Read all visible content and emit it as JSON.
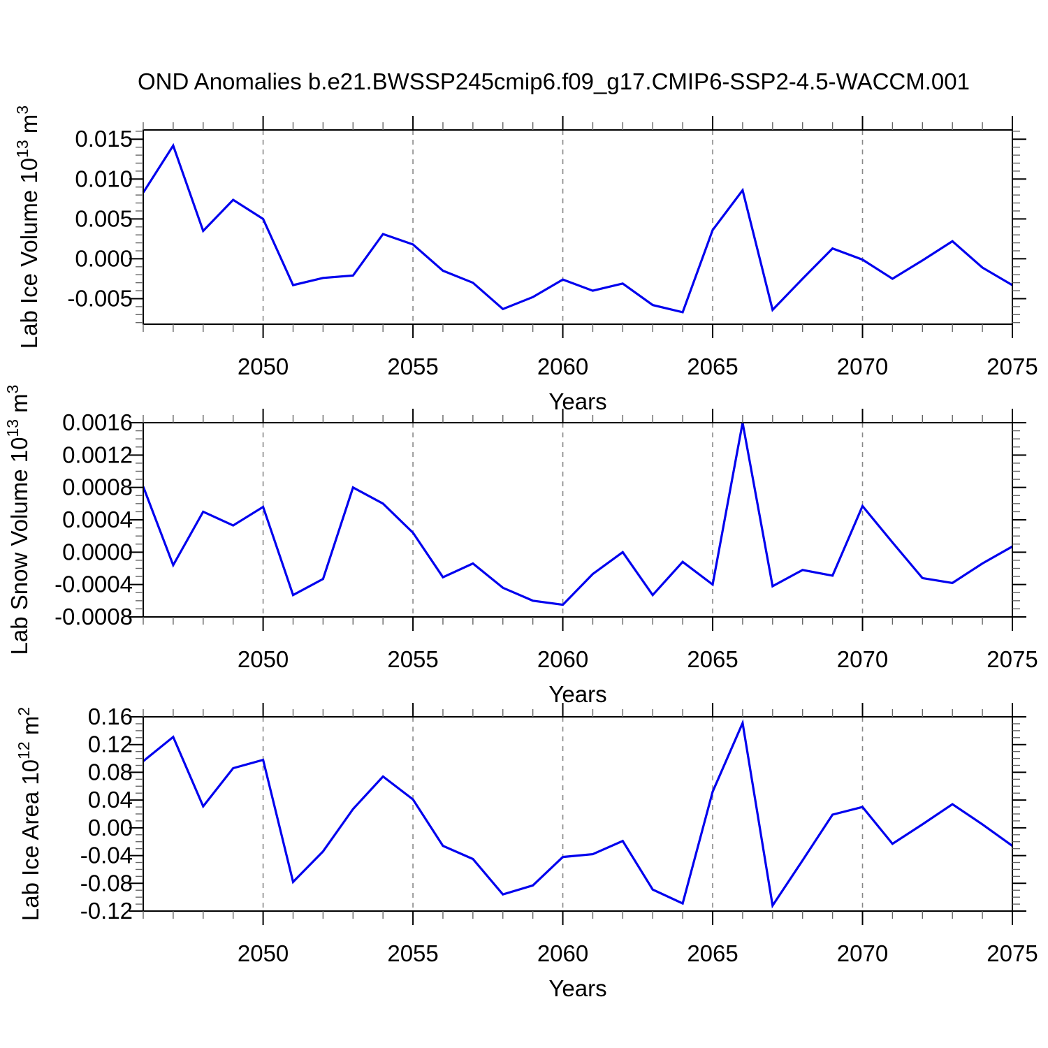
{
  "title": "OND Anomalies b.e21.BWSSP245cmip6.f09_g17.CMIP6-SSP2-4.5-WACCM.001",
  "colors": {
    "line": "#0000EE",
    "grid": "#888888",
    "axis": "#000000",
    "minor_tick": "#666666",
    "text": "#000000"
  },
  "chart_data": {
    "type": "line",
    "xlabel": "Years",
    "xlim": [
      2046,
      2075
    ],
    "x": [
      2046,
      2047,
      2048,
      2049,
      2050,
      2051,
      2052,
      2053,
      2054,
      2055,
      2056,
      2057,
      2058,
      2059,
      2060,
      2061,
      2062,
      2063,
      2064,
      2065,
      2066,
      2067,
      2068,
      2069,
      2070,
      2071,
      2072,
      2073,
      2074,
      2075
    ],
    "x_major_ticks": [
      2050,
      2055,
      2060,
      2065,
      2070,
      2075
    ],
    "x_major_labels": [
      "2050",
      "2055",
      "2060",
      "2065",
      "2070",
      "2075"
    ],
    "x_gridlines": [
      2050,
      2055,
      2060,
      2065,
      2070
    ],
    "panels": [
      {
        "name": "lab-ice-volume",
        "ylabel": "Lab Ice Volume 10^{13} m^{3}",
        "ylim": [
          -0.0082,
          0.01616
        ],
        "y_major_ticks": [
          0.015,
          0.01,
          0.005,
          0.0,
          -0.005
        ],
        "y_major_labels": [
          "0.015",
          "0.010",
          "0.005",
          "0.000",
          "-0.005"
        ],
        "y_minor_step": 0.001,
        "values": [
          0.0083,
          0.0142,
          0.0035,
          0.0074,
          0.005,
          -0.0033,
          -0.0024,
          -0.0021,
          0.0031,
          0.0018,
          -0.0015,
          -0.003,
          -0.0063,
          -0.0048,
          -0.0026,
          -0.004,
          -0.0031,
          -0.0058,
          -0.0067,
          0.0036,
          0.0086,
          -0.0064,
          -0.0025,
          0.0013,
          -0.0001,
          -0.0025,
          -0.0002,
          0.0022,
          -0.0011,
          -0.0033
        ]
      },
      {
        "name": "lab-snow-volume",
        "ylabel": "Lab Snow Volume 10^{13} m^{3}",
        "ylim": [
          -0.0008,
          0.0016
        ],
        "y_major_ticks": [
          0.0016,
          0.0012,
          0.0008,
          0.0004,
          0.0,
          -0.0004,
          -0.0008
        ],
        "y_major_labels": [
          "0.0016",
          "0.0012",
          "0.0008",
          "0.0004",
          "0.0000",
          "-0.0004",
          "-0.0008"
        ],
        "y_minor_step": 0.0001,
        "values": [
          0.00081,
          -0.00016,
          0.0005,
          0.00033,
          0.00056,
          -0.00053,
          -0.00033,
          0.0008,
          0.0006,
          0.00024,
          -0.00031,
          -0.00014,
          -0.00044,
          -0.0006,
          -0.00065,
          -0.00027,
          0.0,
          -0.00053,
          -0.00012,
          -0.0004,
          0.0016,
          -0.00042,
          -0.00022,
          -0.00029,
          0.00057,
          0.00012,
          -0.00032,
          -0.00038,
          -0.00014,
          7e-05
        ]
      },
      {
        "name": "lab-ice-area",
        "ylabel": "Lab Ice Area 10^{12} m^{2}",
        "ylim": [
          -0.12,
          0.16
        ],
        "y_major_ticks": [
          0.16,
          0.12,
          0.08,
          0.04,
          0.0,
          -0.04,
          -0.08,
          -0.12
        ],
        "y_major_labels": [
          "0.16",
          "0.12",
          "0.08",
          "0.04",
          "0.00",
          "-0.04",
          "-0.08",
          "-0.12"
        ],
        "y_minor_step": 0.01,
        "values": [
          0.096,
          0.131,
          0.031,
          0.086,
          0.098,
          -0.078,
          -0.034,
          0.027,
          0.074,
          0.041,
          -0.026,
          -0.045,
          -0.096,
          -0.083,
          -0.042,
          -0.038,
          -0.019,
          -0.089,
          -0.109,
          0.052,
          0.151,
          -0.112,
          -0.047,
          0.019,
          0.03,
          -0.023,
          0.005,
          0.034,
          0.005,
          -0.026
        ]
      }
    ]
  }
}
